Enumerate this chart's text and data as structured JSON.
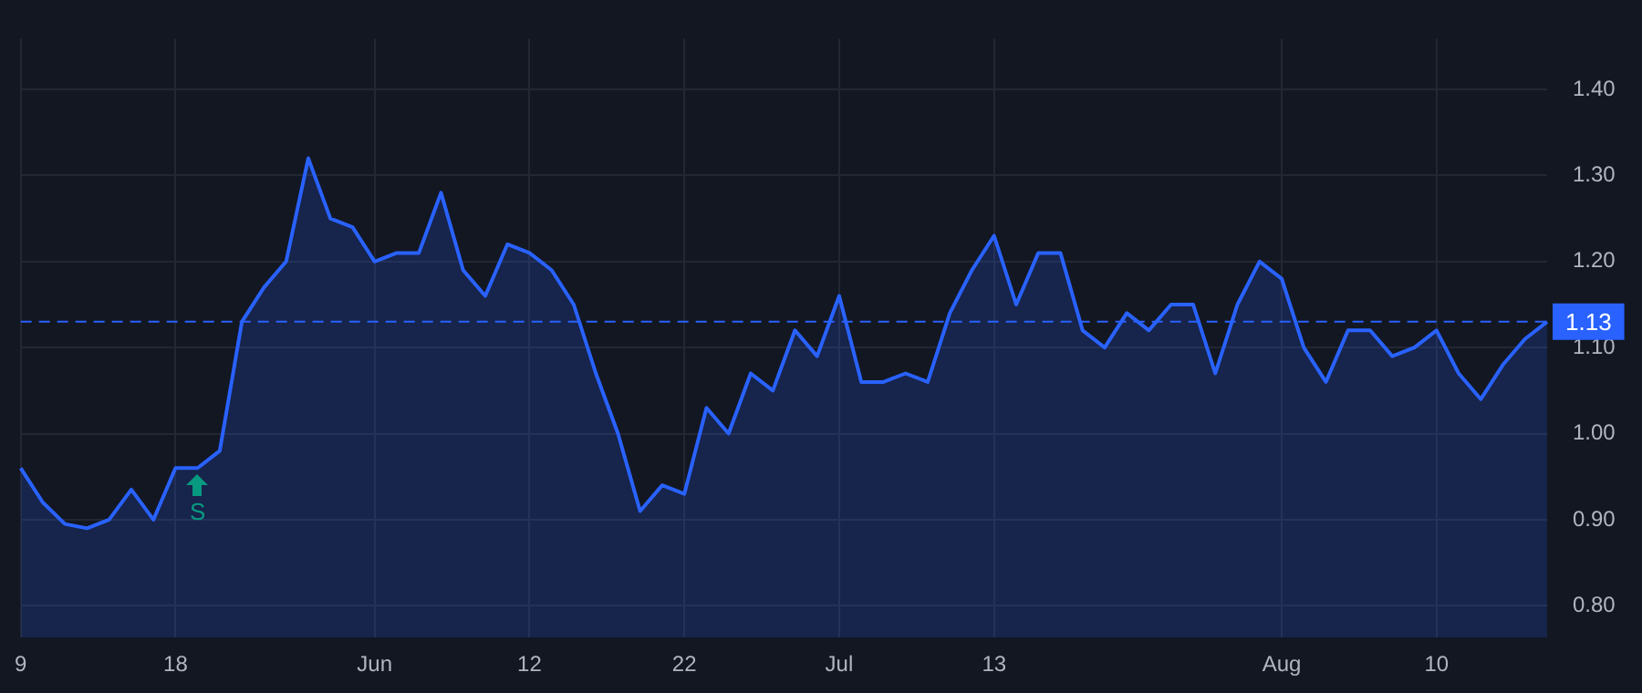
{
  "chart_data": {
    "type": "area",
    "categories": [
      "9",
      null,
      null,
      null,
      null,
      null,
      null,
      "18",
      null,
      null,
      null,
      null,
      null,
      null,
      null,
      null,
      "Jun",
      null,
      null,
      null,
      null,
      null,
      null,
      "12",
      null,
      null,
      null,
      null,
      null,
      null,
      "22",
      null,
      null,
      null,
      null,
      null,
      null,
      "Jul",
      null,
      null,
      null,
      null,
      null,
      null,
      "13",
      null,
      null,
      null,
      null,
      null,
      null,
      null,
      null,
      null,
      null,
      null,
      null,
      "Aug",
      null,
      null,
      null,
      null,
      null,
      null,
      "10",
      null,
      null,
      null,
      null,
      null
    ],
    "series": [
      {
        "color": "#2962ff",
        "values": [
          0.96,
          0.92,
          0.895,
          0.89,
          0.9,
          0.935,
          0.9,
          0.96,
          0.96,
          0.98,
          1.13,
          1.17,
          1.2,
          1.32,
          1.25,
          1.24,
          1.2,
          1.21,
          1.21,
          1.28,
          1.19,
          1.16,
          1.22,
          1.21,
          1.19,
          1.15,
          1.07,
          1.0,
          0.91,
          0.94,
          0.93,
          1.03,
          1.0,
          1.07,
          1.05,
          1.12,
          1.09,
          1.16,
          1.06,
          1.06,
          1.07,
          1.06,
          1.14,
          1.19,
          1.23,
          1.15,
          1.21,
          1.21,
          1.12,
          1.1,
          1.14,
          1.12,
          1.15,
          1.15,
          1.07,
          1.15,
          1.2,
          1.18,
          1.1,
          1.06,
          1.12,
          1.12,
          1.09,
          1.1,
          1.12,
          1.07,
          1.04,
          1.08,
          1.11,
          1.13
        ]
      }
    ],
    "ylim": [
      0.763,
      1.459
    ],
    "yticks": [
      {
        "value": 0.8,
        "label": "0.80"
      },
      {
        "value": 0.9,
        "label": "0.90"
      },
      {
        "value": 1.0,
        "label": "1.00"
      },
      {
        "value": 1.1,
        "label": "1.10"
      },
      {
        "value": 1.2,
        "label": "1.20"
      },
      {
        "value": 1.3,
        "label": "1.30"
      },
      {
        "value": 1.4,
        "label": "1.40"
      }
    ],
    "ref_lines": [
      {
        "axis": "y",
        "value": 1.13,
        "label": "1.13",
        "color": "#2962ff",
        "line_style": "dashed"
      }
    ],
    "annotations": [
      {
        "text": "S",
        "y": 0.96
      }
    ],
    "grid": true
  }
}
